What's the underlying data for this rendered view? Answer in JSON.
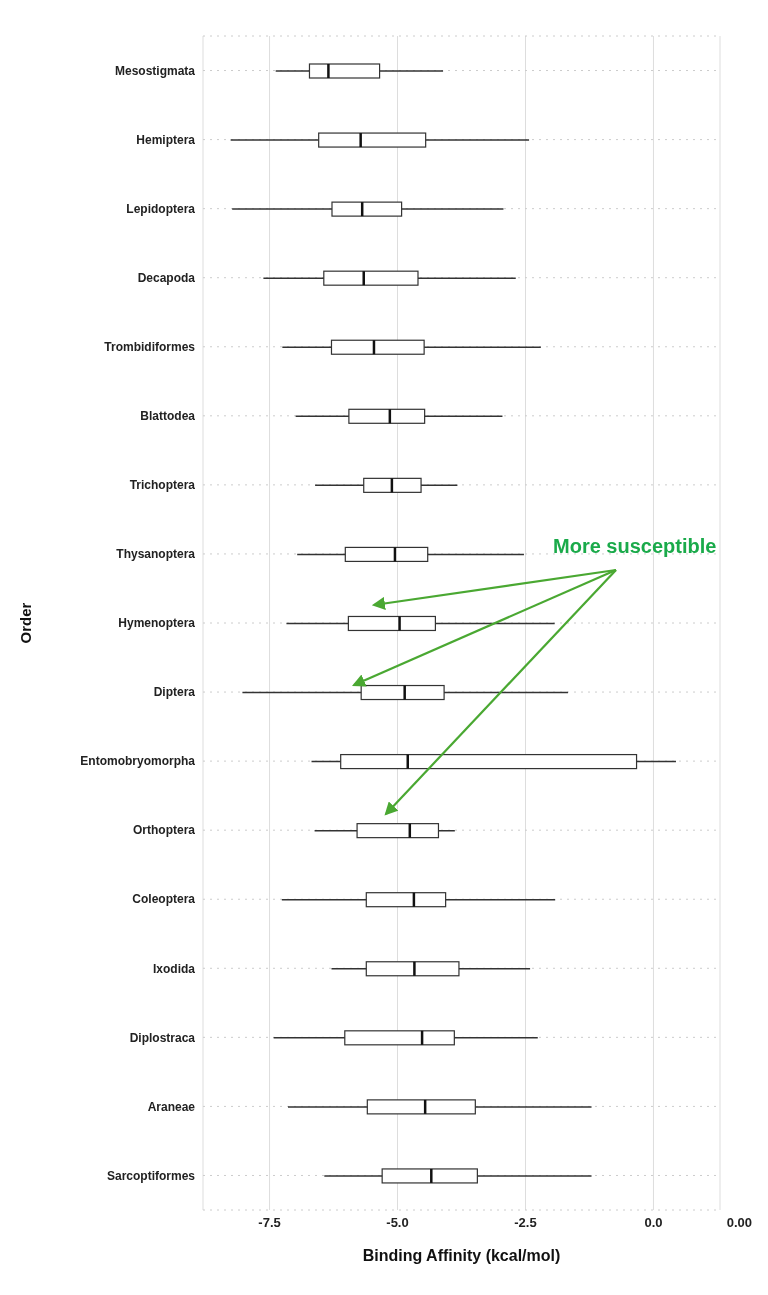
{
  "chart_data": {
    "type": "box",
    "orientation": "horizontal",
    "xlabel": "Binding Affinity (kcal/mol)",
    "ylabel": "Order",
    "categories": [
      "Mesostigmata",
      "Hemiptera",
      "Lepidoptera",
      "Decapoda",
      "Trombidiformes",
      "Blattodea",
      "Trichoptera",
      "Thysanoptera",
      "Hymenoptera",
      "Diptera",
      "Entomobryomorpha",
      "Orthoptera",
      "Coleoptera",
      "Ixodida",
      "Diplostraca",
      "Araneae",
      "Sarcoptiformes"
    ],
    "boxes": [
      {
        "low": -7.38,
        "q1": -6.72,
        "median": -6.35,
        "q3": -5.35,
        "high": -4.11
      },
      {
        "low": -8.26,
        "q1": -6.54,
        "median": -5.72,
        "q3": -4.45,
        "high": -2.43
      },
      {
        "low": -8.23,
        "q1": -6.28,
        "median": -5.69,
        "q3": -4.92,
        "high": -2.93
      },
      {
        "low": -7.62,
        "q1": -6.44,
        "median": -5.66,
        "q3": -4.6,
        "high": -2.69
      },
      {
        "low": -7.25,
        "q1": -6.29,
        "median": -5.46,
        "q3": -4.48,
        "high": -2.2
      },
      {
        "low": -6.99,
        "q1": -5.95,
        "median": -5.15,
        "q3": -4.47,
        "high": -2.95
      },
      {
        "low": -6.61,
        "q1": -5.66,
        "median": -5.11,
        "q3": -4.54,
        "high": -3.83
      },
      {
        "low": -6.96,
        "q1": -6.02,
        "median": -5.05,
        "q3": -4.41,
        "high": -2.53
      },
      {
        "low": -7.17,
        "q1": -5.96,
        "median": -4.96,
        "q3": -4.26,
        "high": -1.93
      },
      {
        "low": -8.03,
        "q1": -5.71,
        "median": -4.86,
        "q3": -4.09,
        "high": -1.67
      },
      {
        "low": -6.68,
        "q1": -6.11,
        "median": -4.8,
        "q3": -0.33,
        "high": 0.44
      },
      {
        "low": -6.62,
        "q1": -5.79,
        "median": -4.76,
        "q3": -4.2,
        "high": -3.88
      },
      {
        "low": -7.26,
        "q1": -5.61,
        "median": -4.68,
        "q3": -4.06,
        "high": -1.92
      },
      {
        "low": -6.29,
        "q1": -5.61,
        "median": -4.67,
        "q3": -3.8,
        "high": -2.41
      },
      {
        "low": -7.42,
        "q1": -6.03,
        "median": -4.52,
        "q3": -3.89,
        "high": -2.26
      },
      {
        "low": -7.14,
        "q1": -5.59,
        "median": -4.46,
        "q3": -3.48,
        "high": -1.21
      },
      {
        "low": -6.43,
        "q1": -5.3,
        "median": -4.34,
        "q3": -3.44,
        "high": -1.21
      }
    ],
    "xlim": [
      -8.8,
      1.3
    ],
    "xticks": [
      {
        "value": -7.5,
        "label": "-7.5"
      },
      {
        "value": -5,
        "label": "-5.0"
      },
      -2.5,
      {
        "value": 0,
        "label": "0.0"
      }
    ],
    "grid": true,
    "annotations": [
      "More susceptible",
      "0.00"
    ]
  }
}
